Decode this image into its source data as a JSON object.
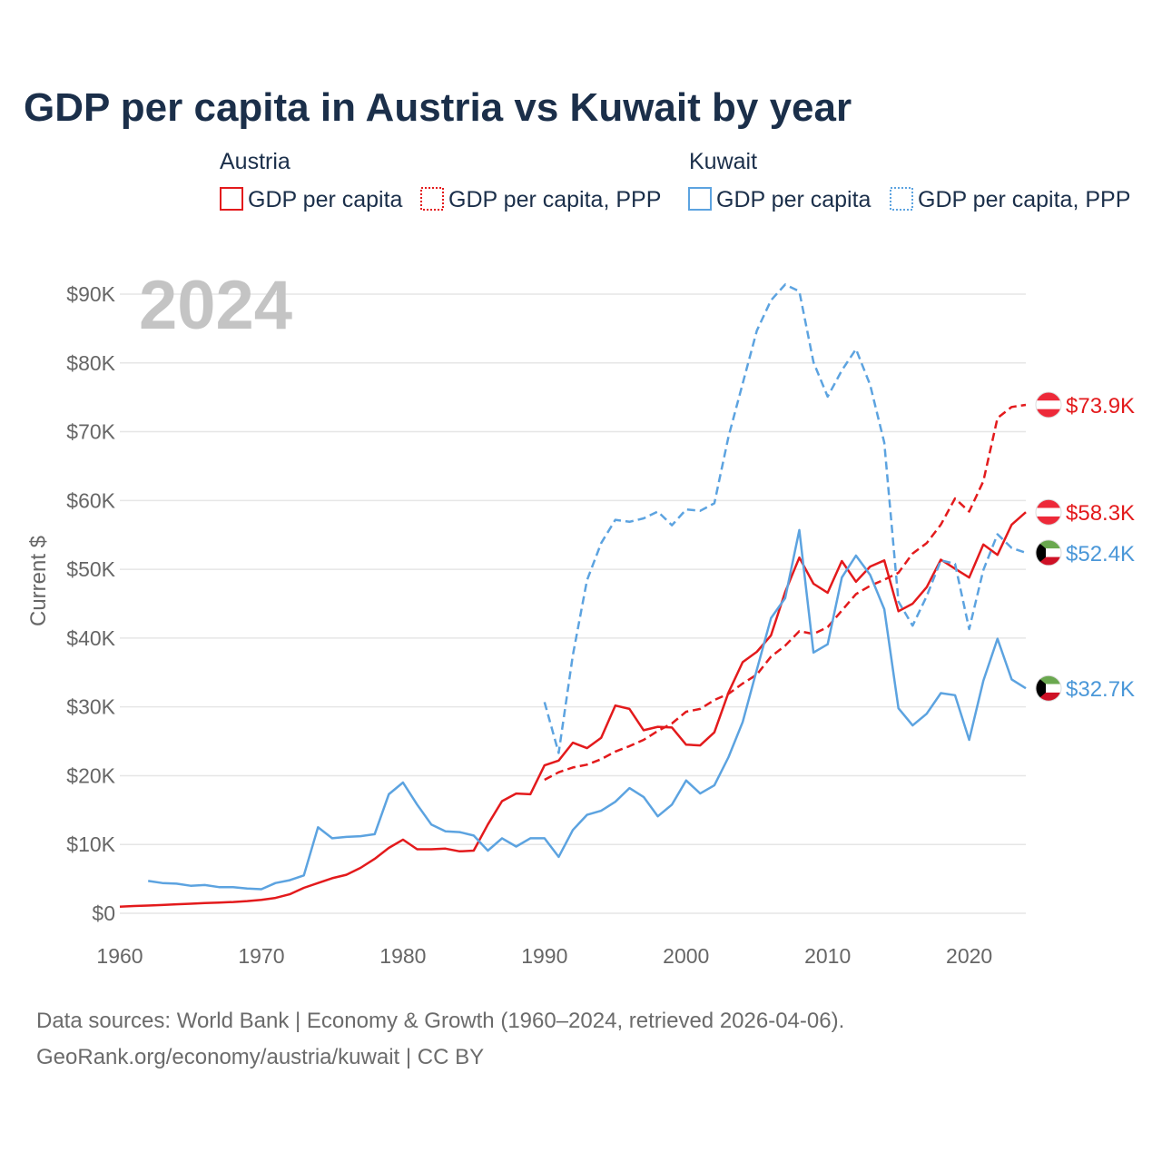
{
  "chart_data": {
    "type": "line",
    "title": "GDP per capita in Austria vs Kuwait by year",
    "ylabel": "Current $",
    "xlabel": "",
    "current_year": "2024",
    "xlim": [
      1960,
      2024
    ],
    "ylim": [
      0,
      90000
    ],
    "x_ticks": [
      1960,
      1970,
      1980,
      1990,
      2000,
      2010,
      2020
    ],
    "x_tick_labels": [
      "1960",
      "1970",
      "1980",
      "1990",
      "2000",
      "2010",
      "2020"
    ],
    "y_ticks": [
      0,
      10000,
      20000,
      30000,
      40000,
      50000,
      60000,
      70000,
      80000,
      90000
    ],
    "y_tick_labels": [
      "$0",
      "$10K",
      "$20K",
      "$30K",
      "$40K",
      "$50K",
      "$60K",
      "$70K",
      "$80K",
      "$90K"
    ],
    "grid": true,
    "legend_groups": [
      {
        "country": "Austria",
        "items": [
          "GDP per capita",
          "GDP per capita, PPP"
        ]
      },
      {
        "country": "Kuwait",
        "items": [
          "GDP per capita",
          "GDP per capita, PPP"
        ]
      }
    ],
    "series": [
      {
        "name": "Austria GDP per capita",
        "country": "Austria",
        "style": "solid",
        "color": "#e31a1c",
        "end_label": "$58.3K",
        "start_year": 1960,
        "values": [
          950,
          1050,
          1120,
          1200,
          1300,
          1380,
          1480,
          1560,
          1640,
          1770,
          1950,
          2230,
          2760,
          3700,
          4400,
          5100,
          5600,
          6600,
          7900,
          9500,
          10700,
          9300,
          9300,
          9400,
          9000,
          9100,
          12900,
          16300,
          17400,
          17300,
          21500,
          22200,
          24800,
          24000,
          25500,
          30200,
          29700,
          26600,
          27100,
          27000,
          24500,
          24400,
          26300,
          32100,
          36500,
          38000,
          40400,
          46700,
          51700,
          47900,
          46600,
          51200,
          48200,
          50400,
          51300,
          43900,
          45000,
          47400,
          51400,
          50100,
          48800,
          53600,
          52100,
          56500,
          58300
        ]
      },
      {
        "name": "Austria GDP per capita, PPP",
        "country": "Austria",
        "style": "dashed",
        "color": "#e31a1c",
        "end_label": "$73.9K",
        "start_year": 1990,
        "values": [
          19400,
          20500,
          21200,
          21600,
          22400,
          23500,
          24300,
          25200,
          26500,
          27600,
          29300,
          29700,
          31000,
          31900,
          33400,
          34700,
          37300,
          38900,
          41000,
          40600,
          41600,
          44000,
          46400,
          47600,
          48500,
          49500,
          52300,
          53800,
          56500,
          60300,
          58400,
          62800,
          72000,
          73600,
          73900
        ]
      },
      {
        "name": "Kuwait GDP per capita",
        "country": "Kuwait",
        "style": "solid",
        "color": "#5ca3e0",
        "end_label": "$32.7K",
        "start_year": 1962,
        "values": [
          4700,
          4400,
          4300,
          4000,
          4100,
          3800,
          3800,
          3600,
          3500,
          4400,
          4800,
          5500,
          12500,
          10900,
          11100,
          11200,
          11500,
          17300,
          19000,
          15800,
          12900,
          11900,
          11800,
          11300,
          9100,
          10900,
          9700,
          10900,
          10900,
          8200,
          12100,
          14300,
          14900,
          16200,
          18200,
          16900,
          14100,
          15800,
          19300,
          17400,
          18600,
          22700,
          27800,
          35400,
          42900,
          45800,
          55700,
          37900,
          39100,
          48800,
          52000,
          49200,
          44200,
          29800,
          27300,
          29000,
          32000,
          31700,
          25200,
          33800,
          39900,
          34000,
          32700
        ]
      },
      {
        "name": "Kuwait GDP per capita, PPP",
        "country": "Kuwait",
        "style": "dashed",
        "color": "#5ca3e0",
        "end_label": "$52.4K",
        "start_year": 1990,
        "values": [
          30700,
          23300,
          37500,
          48400,
          53800,
          57200,
          56900,
          57400,
          58400,
          56400,
          58700,
          58500,
          59600,
          69300,
          77000,
          84700,
          89100,
          91400,
          90400,
          80100,
          75100,
          78900,
          82000,
          76800,
          68400,
          45300,
          41800,
          46100,
          51300,
          50800,
          41300,
          49900,
          55100,
          53100,
          52400
        ]
      }
    ],
    "source_text": [
      "Data sources: World Bank | Economy & Growth (1960–2024, retrieved 2026-04-06).",
      "GeoRank.org/economy/austria/kuwait | CC BY"
    ]
  }
}
